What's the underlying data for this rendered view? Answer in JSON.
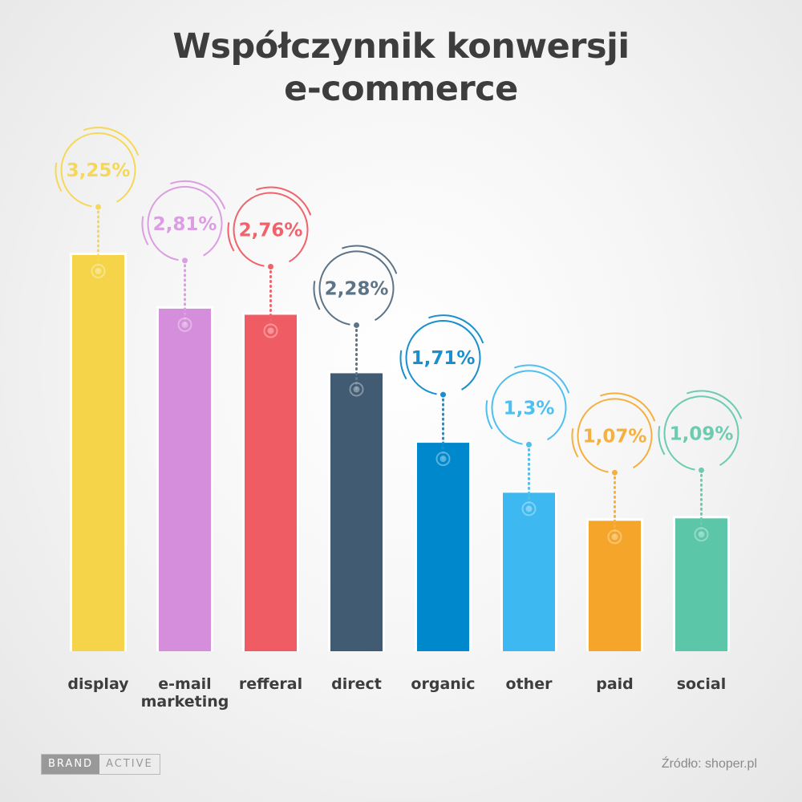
{
  "chart_data": {
    "type": "bar",
    "title_line1": "Współczynnik konwersji",
    "title_line2": "e-commerce",
    "categories": [
      "display",
      "e-mail marketing",
      "refferal",
      "direct",
      "organic",
      "other",
      "paid",
      "social"
    ],
    "values": [
      3.25,
      2.81,
      2.76,
      2.28,
      1.71,
      1.3,
      1.07,
      1.09
    ],
    "labels": [
      "3,25%",
      "2,81%",
      "2,76%",
      "2,28%",
      "1,71%",
      "1,3%",
      "1,07%",
      "1,09%"
    ],
    "colors": [
      "#f5d44a",
      "#d48edb",
      "#f05c64",
      "#415b73",
      "#0088cc",
      "#3db8f0",
      "#f5a52a",
      "#5cc6a8"
    ],
    "label_colors": [
      "#f5d85a",
      "#dc9ee2",
      "#f0636b",
      "#5d7386",
      "#1b8fce",
      "#4ec0f0",
      "#f5b040",
      "#6ccbb0"
    ],
    "ylim": [
      0,
      3.25
    ],
    "grid": false,
    "xlabel": "",
    "ylabel": ""
  },
  "brand": {
    "part1": "BRAND",
    "part2": "ACTIVE"
  },
  "source": "Źródło: shoper.pl"
}
